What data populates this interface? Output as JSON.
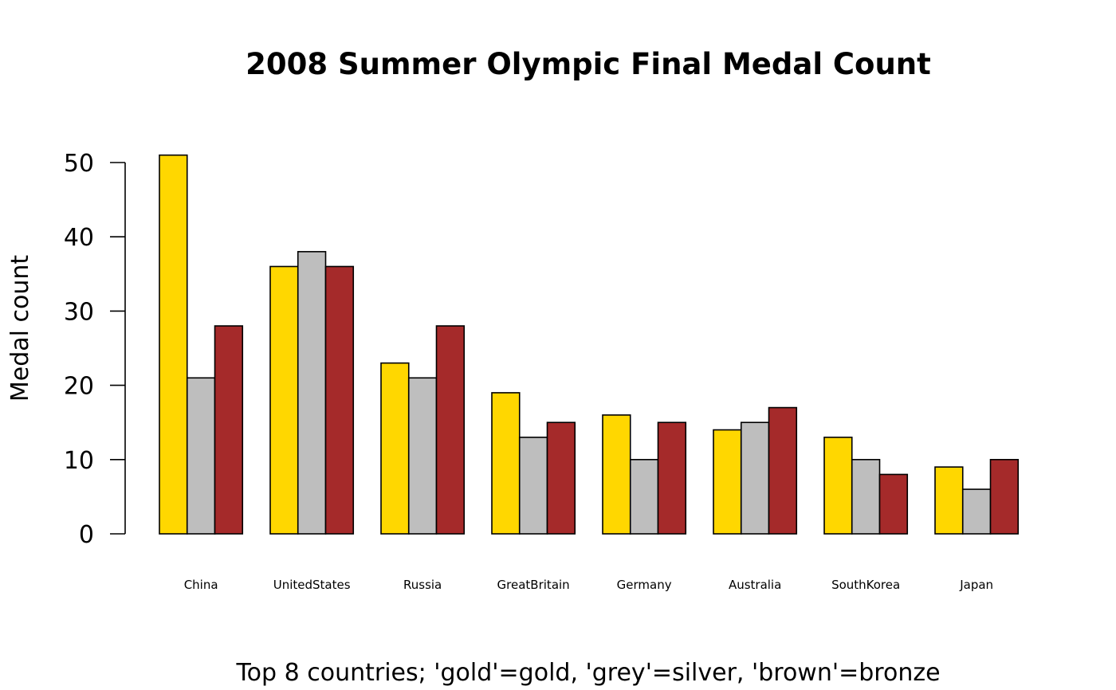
{
  "chart_data": {
    "type": "bar",
    "title": "2008 Summer Olympic Final Medal Count",
    "xlabel": "Top 8 countries; 'gold'=gold, 'grey'=silver, 'brown'=bronze",
    "ylabel": "Medal count",
    "categories": [
      "China",
      "UnitedStates",
      "Russia",
      "GreatBritain",
      "Germany",
      "Australia",
      "SouthKorea",
      "Japan"
    ],
    "series": [
      {
        "color": "#FFD700",
        "values": [
          51,
          36,
          23,
          19,
          16,
          14,
          13,
          9
        ]
      },
      {
        "color": "#BEBEBE",
        "values": [
          21,
          38,
          21,
          13,
          10,
          15,
          10,
          6
        ]
      },
      {
        "color": "#A52A2A",
        "values": [
          28,
          36,
          28,
          15,
          15,
          17,
          8,
          10
        ]
      }
    ],
    "yticks": [
      0,
      10,
      20,
      30,
      40,
      50
    ],
    "ylim": [
      0,
      50
    ],
    "grid": false,
    "legend": "none"
  }
}
